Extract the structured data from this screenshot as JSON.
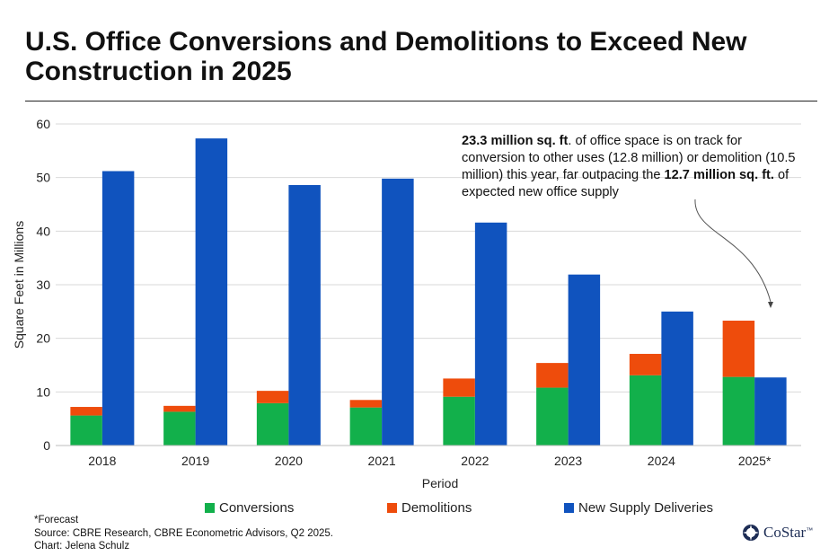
{
  "chart_data": {
    "type": "bar",
    "title": "U.S. Office Conversions and Demolitions to Exceed New Construction in 2025",
    "xlabel": "Period",
    "ylabel": "Square Feet in Millions",
    "ylim": [
      0,
      60
    ],
    "yticks": [
      0,
      10,
      20,
      30,
      40,
      50,
      60
    ],
    "grid": true,
    "legend_position": "bottom",
    "categories": [
      "2018",
      "2019",
      "2020",
      "2021",
      "2022",
      "2023",
      "2024",
      "2025*"
    ],
    "series": [
      {
        "name": "Conversions",
        "stack": "conversions_demolitions",
        "color": "#12b04b",
        "values": [
          5.6,
          6.3,
          7.9,
          7.1,
          9.1,
          10.8,
          13.1,
          12.8
        ]
      },
      {
        "name": "Demolitions",
        "stack": "conversions_demolitions",
        "color": "#ee4c0c",
        "values": [
          1.6,
          1.1,
          2.3,
          1.4,
          3.4,
          4.6,
          4.0,
          10.5
        ]
      },
      {
        "name": "New Supply Deliveries",
        "stack": "new_supply",
        "color": "#1053be",
        "values": [
          51.2,
          57.3,
          48.6,
          49.8,
          41.6,
          31.9,
          25.0,
          12.7
        ]
      }
    ],
    "annotation": {
      "bold1": "23.3 million sq. ft",
      "text1": ". of office space is on track for conversion to other uses (12.8 million) or demolition (10.5 million) this year, far outpacing the ",
      "bold2": "12.7 million sq. ft.",
      "text2": " of expected new office supply"
    }
  },
  "footnotes": {
    "line1": "*Forecast",
    "line2": "Source: CBRE Research, CBRE Econometric Advisors, Q2 2025.",
    "line3": "Chart: Jelena Schulz"
  },
  "logo": {
    "text": "CoStar",
    "tm": "™"
  }
}
